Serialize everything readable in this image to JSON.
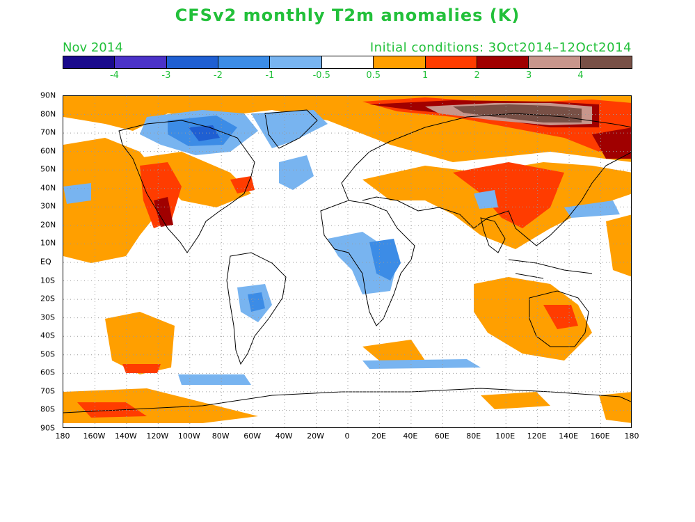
{
  "title": "CFSv2 monthly T2m anomalies (K)",
  "valid_month": "Nov 2014",
  "initial_conditions": "Initial conditions:  3Oct2014–12Oct2014",
  "colorbar": {
    "colors": [
      "#1a0a8c",
      "#4b32c8",
      "#1f5fd2",
      "#3c8ce6",
      "#78b4f0",
      "#ffffff",
      "#ff9f00",
      "#ff3c00",
      "#a00000",
      "#c8968c",
      "#785046"
    ],
    "labels": [
      "-4",
      "-3",
      "-2",
      "-1",
      "-0.5",
      "0.5",
      "1",
      "2",
      "3",
      "4"
    ]
  },
  "lat_labels": [
    "90N",
    "80N",
    "70N",
    "60N",
    "50N",
    "40N",
    "30N",
    "20N",
    "10N",
    "EQ",
    "10S",
    "20S",
    "30S",
    "40S",
    "50S",
    "60S",
    "70S",
    "80S",
    "90S"
  ],
  "lon_labels": [
    "180",
    "160W",
    "140W",
    "120W",
    "100W",
    "80W",
    "60W",
    "40W",
    "20W",
    "0",
    "20E",
    "40E",
    "60E",
    "80E",
    "100E",
    "120E",
    "140E",
    "160E",
    "180"
  ],
  "colors": {
    "title": "#22c03a",
    "grid": "#9a9a9a",
    "coast": "#000000"
  }
}
